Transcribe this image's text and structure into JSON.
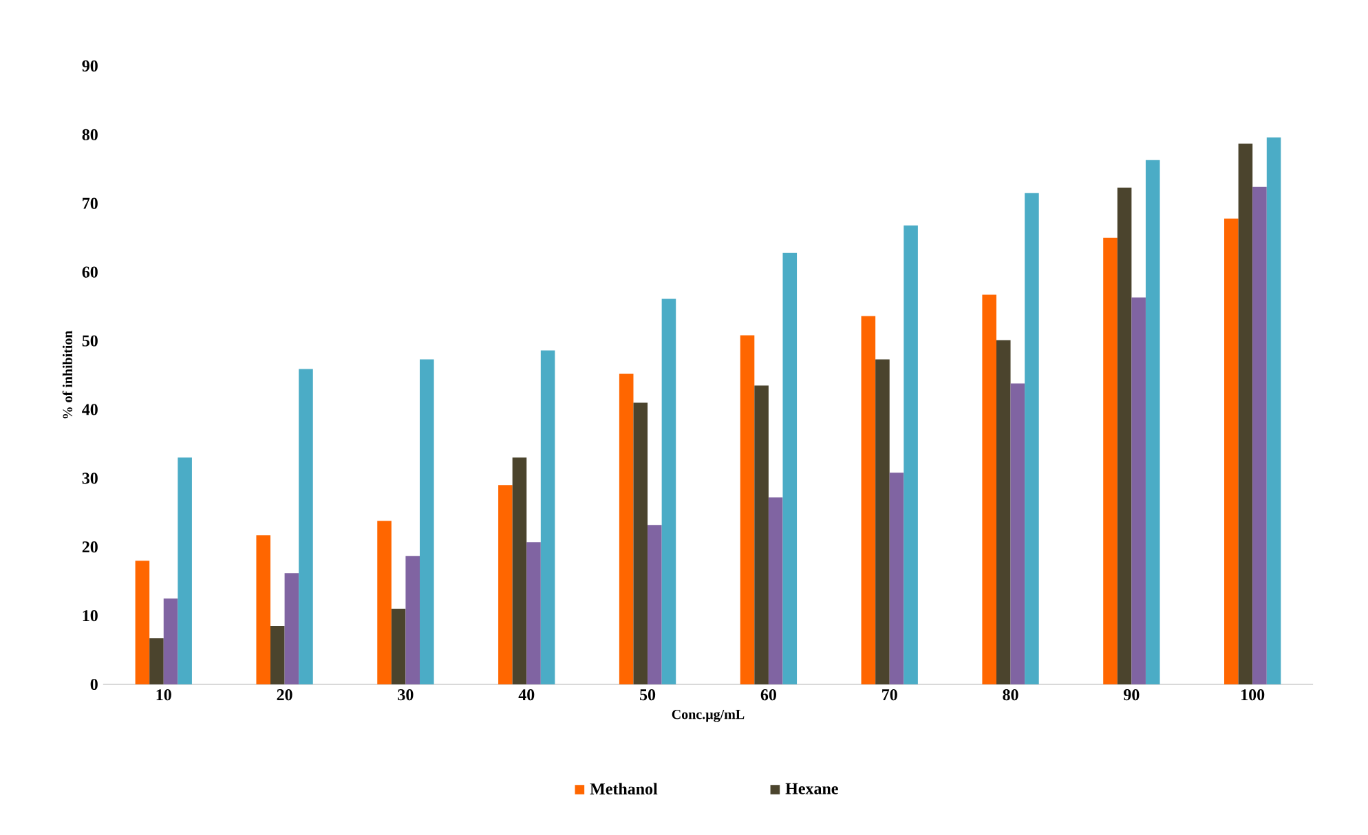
{
  "chart_data": {
    "type": "bar",
    "xlabel": "Conc.µg/mL",
    "ylabel": "% of inhibition",
    "categories": [
      "10",
      "20",
      "30",
      "40",
      "50",
      "60",
      "70",
      "80",
      "90",
      "100"
    ],
    "series": [
      {
        "name": "Methanol",
        "color": "#ff6600",
        "values": [
          18,
          21.7,
          23.8,
          29,
          45.2,
          50.8,
          53.6,
          56.7,
          65,
          67.8
        ]
      },
      {
        "name": "Hexane",
        "color": "#4b442d",
        "values": [
          6.7,
          8.5,
          11,
          33,
          41,
          43.5,
          47.3,
          50.1,
          72.3,
          78.7
        ]
      },
      {
        "color": "#8064a2",
        "values": [
          12.5,
          16.2,
          18.7,
          20.7,
          23.2,
          27.2,
          30.8,
          43.8,
          56.3,
          72.4
        ]
      },
      {
        "color": "#4bacc6",
        "values": [
          33,
          45.9,
          47.3,
          48.6,
          56.1,
          62.8,
          66.8,
          71.5,
          76.3,
          79.6
        ]
      }
    ],
    "ylim": [
      0,
      90
    ],
    "yticks": [
      0,
      10,
      20,
      30,
      40,
      50,
      60,
      70,
      80,
      90
    ],
    "grid": false,
    "legend": "bottom"
  }
}
